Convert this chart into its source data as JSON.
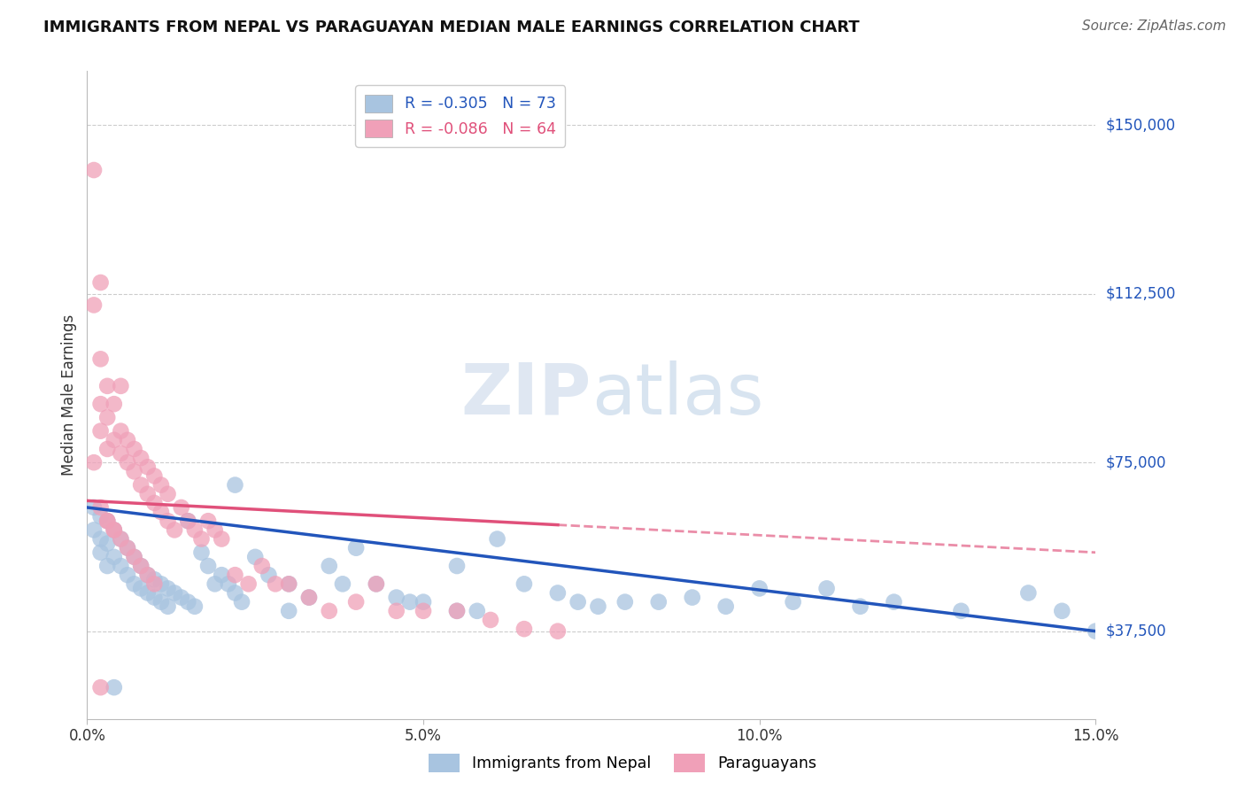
{
  "title": "IMMIGRANTS FROM NEPAL VS PARAGUAYAN MEDIAN MALE EARNINGS CORRELATION CHART",
  "source_text": "Source: ZipAtlas.com",
  "ylabel": "Median Male Earnings",
  "xlim": [
    0.0,
    0.15
  ],
  "ylim": [
    18000,
    162000
  ],
  "yticks": [
    37500,
    75000,
    112500,
    150000
  ],
  "ytick_labels": [
    "$37,500",
    "$75,000",
    "$112,500",
    "$150,000"
  ],
  "xticks": [
    0.0,
    0.05,
    0.1,
    0.15
  ],
  "xtick_labels": [
    "0.0%",
    "5.0%",
    "10.0%",
    "15.0%"
  ],
  "nepal_R": -0.305,
  "nepal_N": 73,
  "paraguay_R": -0.086,
  "paraguay_N": 64,
  "nepal_color": "#a8c4e0",
  "paraguay_color": "#f0a0b8",
  "nepal_line_color": "#2255bb",
  "paraguay_line_color": "#e0507a",
  "watermark_zip": "ZIP",
  "watermark_atlas": "atlas",
  "nepal_scatter_x": [
    0.001,
    0.001,
    0.002,
    0.002,
    0.002,
    0.003,
    0.003,
    0.003,
    0.004,
    0.004,
    0.005,
    0.005,
    0.006,
    0.006,
    0.007,
    0.007,
    0.008,
    0.008,
    0.009,
    0.009,
    0.01,
    0.01,
    0.011,
    0.011,
    0.012,
    0.012,
    0.013,
    0.014,
    0.015,
    0.016,
    0.017,
    0.018,
    0.019,
    0.02,
    0.021,
    0.022,
    0.023,
    0.025,
    0.027,
    0.03,
    0.033,
    0.036,
    0.04,
    0.043,
    0.046,
    0.05,
    0.055,
    0.058,
    0.061,
    0.065,
    0.07,
    0.073,
    0.076,
    0.08,
    0.085,
    0.09,
    0.095,
    0.1,
    0.105,
    0.11,
    0.115,
    0.12,
    0.13,
    0.14,
    0.145,
    0.15,
    0.048,
    0.055,
    0.022,
    0.015,
    0.004,
    0.03,
    0.038
  ],
  "nepal_scatter_y": [
    65000,
    60000,
    63000,
    58000,
    55000,
    62000,
    57000,
    52000,
    60000,
    54000,
    58000,
    52000,
    56000,
    50000,
    54000,
    48000,
    52000,
    47000,
    50000,
    46000,
    49000,
    45000,
    48000,
    44000,
    47000,
    43000,
    46000,
    45000,
    44000,
    43000,
    55000,
    52000,
    48000,
    50000,
    48000,
    46000,
    44000,
    54000,
    50000,
    48000,
    45000,
    52000,
    56000,
    48000,
    45000,
    44000,
    52000,
    42000,
    58000,
    48000,
    46000,
    44000,
    43000,
    44000,
    44000,
    45000,
    43000,
    47000,
    44000,
    47000,
    43000,
    44000,
    42000,
    46000,
    42000,
    37500,
    44000,
    42000,
    70000,
    62000,
    25000,
    42000,
    48000
  ],
  "paraguay_scatter_x": [
    0.001,
    0.001,
    0.001,
    0.002,
    0.002,
    0.002,
    0.002,
    0.003,
    0.003,
    0.003,
    0.004,
    0.004,
    0.005,
    0.005,
    0.005,
    0.006,
    0.006,
    0.007,
    0.007,
    0.008,
    0.008,
    0.009,
    0.009,
    0.01,
    0.01,
    0.011,
    0.011,
    0.012,
    0.012,
    0.013,
    0.014,
    0.015,
    0.016,
    0.017,
    0.018,
    0.019,
    0.02,
    0.022,
    0.024,
    0.026,
    0.028,
    0.03,
    0.033,
    0.036,
    0.04,
    0.043,
    0.046,
    0.05,
    0.055,
    0.06,
    0.065,
    0.07,
    0.003,
    0.004,
    0.005,
    0.006,
    0.007,
    0.008,
    0.009,
    0.01,
    0.002,
    0.003,
    0.004,
    0.002
  ],
  "paraguay_scatter_y": [
    140000,
    110000,
    75000,
    98000,
    88000,
    82000,
    65000,
    92000,
    85000,
    78000,
    80000,
    88000,
    77000,
    82000,
    92000,
    75000,
    80000,
    73000,
    78000,
    70000,
    76000,
    68000,
    74000,
    66000,
    72000,
    64000,
    70000,
    62000,
    68000,
    60000,
    65000,
    62000,
    60000,
    58000,
    62000,
    60000,
    58000,
    50000,
    48000,
    52000,
    48000,
    48000,
    45000,
    42000,
    44000,
    48000,
    42000,
    42000,
    42000,
    40000,
    38000,
    37500,
    62000,
    60000,
    58000,
    56000,
    54000,
    52000,
    50000,
    48000,
    115000,
    62000,
    60000,
    25000
  ]
}
